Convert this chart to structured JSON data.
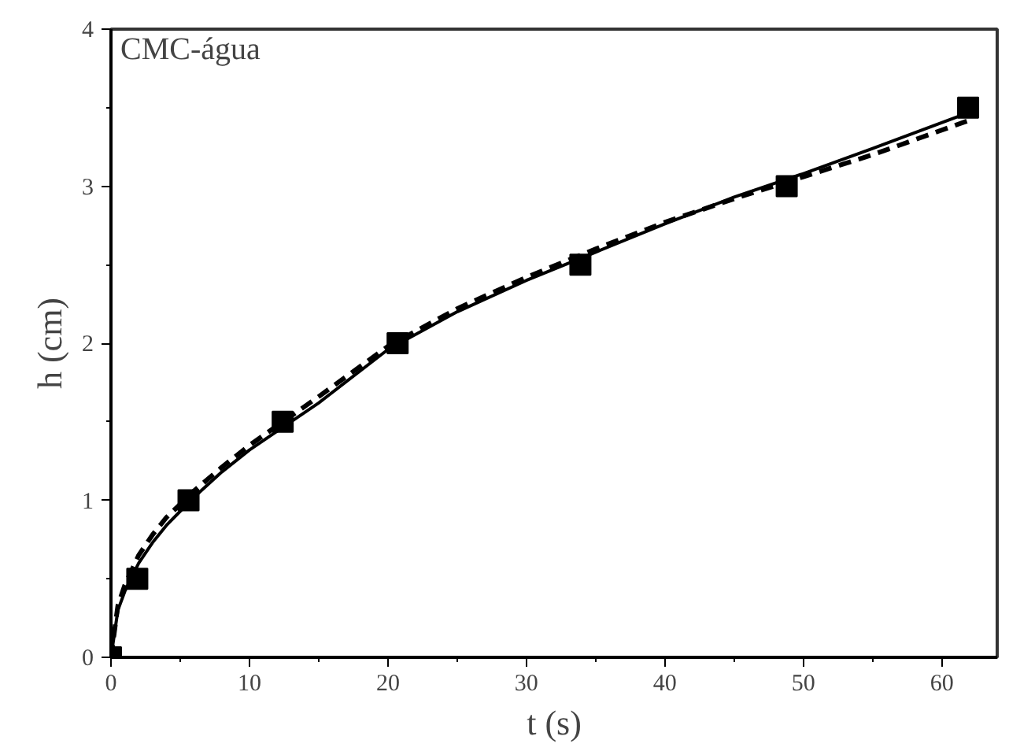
{
  "chart_data": {
    "type": "scatter",
    "xlabel": "t (s)",
    "ylabel": "h (cm)",
    "annotations": [
      "CMC-água"
    ],
    "xlim": [
      0,
      64
    ],
    "ylim": [
      0,
      4
    ],
    "xticks": [
      0,
      10,
      20,
      30,
      40,
      50,
      60
    ],
    "yticks": [
      0,
      1,
      2,
      3,
      4
    ],
    "grid": false,
    "series": [
      {
        "marker": "square",
        "color": "#000000",
        "x": [
          0,
          1.9,
          5.6,
          12.4,
          20.7,
          33.9,
          48.8,
          61.9
        ],
        "values": [
          0,
          0.5,
          1,
          1.5,
          2,
          2.5,
          3,
          3.5
        ]
      },
      {
        "type": "line",
        "line_style": "solid",
        "color": "#000000",
        "x": [
          0,
          0.5,
          1,
          2,
          3,
          4,
          6,
          8,
          10,
          15,
          20,
          25,
          30,
          35,
          40,
          45,
          50,
          55,
          62
        ],
        "values": [
          0,
          0.3,
          0.42,
          0.6,
          0.73,
          0.84,
          1.02,
          1.18,
          1.32,
          1.62,
          1.96,
          2.2,
          2.4,
          2.58,
          2.76,
          2.93,
          3.08,
          3.24,
          3.47
        ]
      },
      {
        "type": "line",
        "line_style": "dashed",
        "color": "#000000",
        "x": [
          0,
          0.5,
          1,
          2,
          3,
          4,
          6,
          8,
          10,
          15,
          20,
          25,
          30,
          35,
          40,
          45,
          50,
          55,
          62
        ],
        "values": [
          0,
          0.33,
          0.46,
          0.65,
          0.78,
          0.89,
          1.06,
          1.21,
          1.35,
          1.66,
          1.98,
          2.22,
          2.42,
          2.6,
          2.77,
          2.92,
          3.06,
          3.2,
          3.42
        ]
      }
    ]
  }
}
